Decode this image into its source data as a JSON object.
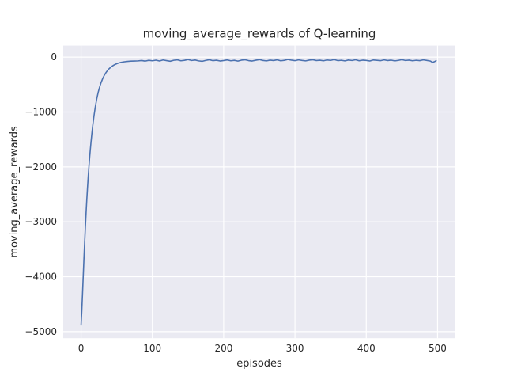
{
  "chart_data": {
    "type": "line",
    "title": "moving_average_rewards of Q-learning",
    "xlabel": "episodes",
    "ylabel": "moving_average_rewards",
    "xlim": [
      -25,
      525
    ],
    "ylim": [
      -5120,
      210
    ],
    "xticks": [
      0,
      100,
      200,
      300,
      400,
      500
    ],
    "yticks": [
      0,
      -1000,
      -2000,
      -3000,
      -4000,
      -5000
    ],
    "xtick_labels": [
      "0",
      "100",
      "200",
      "300",
      "400",
      "500"
    ],
    "ytick_labels": [
      "0",
      "−1000",
      "−2000",
      "−3000",
      "−4000",
      "−5000"
    ],
    "grid": true,
    "legend_position": "none",
    "line_color": "#4c72b0",
    "plot_bg_color": "#eaeaf2",
    "grid_color": "#ffffff",
    "text_color": "#262626",
    "x": [
      0,
      1,
      2,
      3,
      4,
      5,
      6,
      7,
      8,
      9,
      10,
      11,
      12,
      13,
      14,
      15,
      16,
      17,
      18,
      19,
      20,
      22,
      24,
      26,
      28,
      30,
      32,
      34,
      36,
      38,
      40,
      42,
      44,
      46,
      48,
      50,
      53,
      56,
      60,
      65,
      70,
      75,
      80,
      85,
      90,
      95,
      100,
      105,
      110,
      115,
      120,
      125,
      130,
      135,
      140,
      145,
      150,
      155,
      160,
      165,
      170,
      175,
      180,
      185,
      190,
      195,
      200,
      205,
      210,
      215,
      220,
      225,
      230,
      235,
      240,
      245,
      250,
      255,
      260,
      265,
      270,
      275,
      280,
      285,
      290,
      295,
      300,
      305,
      310,
      315,
      320,
      325,
      330,
      335,
      340,
      345,
      350,
      355,
      360,
      365,
      370,
      375,
      380,
      385,
      390,
      395,
      400,
      405,
      410,
      415,
      420,
      425,
      430,
      435,
      440,
      445,
      450,
      455,
      460,
      465,
      470,
      475,
      480,
      485,
      490,
      493,
      496,
      498
    ],
    "y": [
      -4880,
      -4620,
      -4320,
      -4000,
      -3680,
      -3380,
      -3100,
      -2840,
      -2600,
      -2380,
      -2180,
      -2000,
      -1830,
      -1680,
      -1540,
      -1410,
      -1290,
      -1180,
      -1080,
      -990,
      -905,
      -760,
      -640,
      -545,
      -465,
      -400,
      -345,
      -300,
      -262,
      -230,
      -203,
      -180,
      -161,
      -145,
      -131,
      -120,
      -106,
      -96,
      -86,
      -78,
      -73,
      -70,
      -68,
      -62,
      -72,
      -58,
      -66,
      -55,
      -70,
      -52,
      -63,
      -74,
      -57,
      -49,
      -66,
      -58,
      -44,
      -61,
      -53,
      -68,
      -75,
      -59,
      -47,
      -64,
      -56,
      -70,
      -62,
      -51,
      -66,
      -58,
      -72,
      -55,
      -48,
      -63,
      -70,
      -56,
      -45,
      -60,
      -68,
      -54,
      -62,
      -49,
      -66,
      -58,
      -42,
      -55,
      -64,
      -50,
      -60,
      -68,
      -54,
      -47,
      -62,
      -56,
      -66,
      -52,
      -59,
      -45,
      -63,
      -57,
      -68,
      -53,
      -61,
      -48,
      -65,
      -55,
      -60,
      -70,
      -52,
      -58,
      -64,
      -50,
      -62,
      -55,
      -68,
      -59,
      -46,
      -61,
      -54,
      -66,
      -57,
      -63,
      -50,
      -60,
      -72,
      -95,
      -80,
      -65
    ]
  }
}
